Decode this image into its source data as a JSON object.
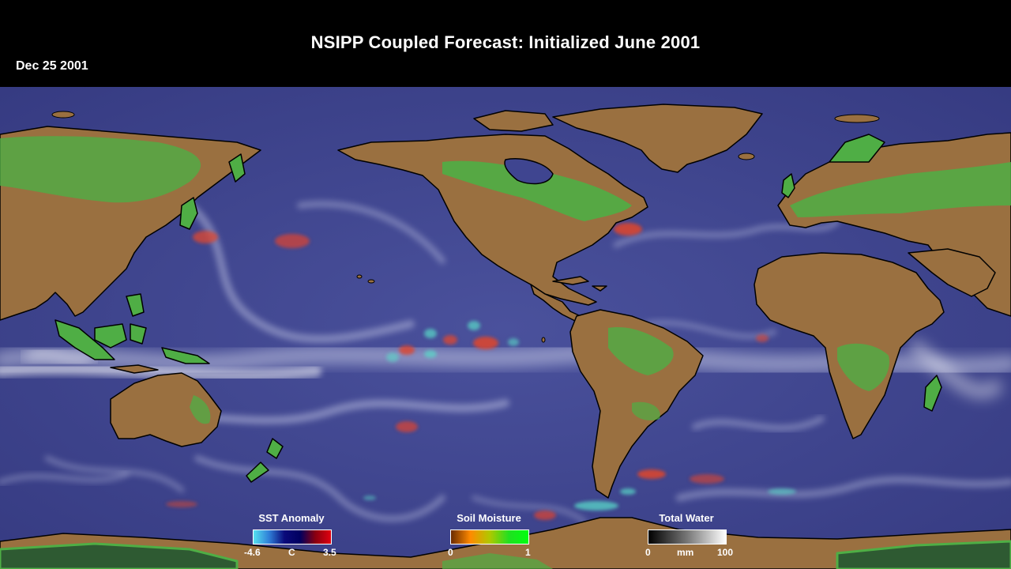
{
  "title": "NSIPP Coupled Forecast: Initialized June 2001",
  "date": "Dec 25 2001",
  "legends": {
    "sst": {
      "label": "SST Anomaly",
      "min": "-4.6",
      "unit": "C",
      "max": "3.5",
      "colors": [
        "#55e0f0",
        "#2f7fd8",
        "#0a0a7a",
        "#000060",
        "#8a0010",
        "#e00010"
      ]
    },
    "soil": {
      "label": "Soil Moisture",
      "min": "0",
      "max": "1",
      "colors": [
        "#6a2a00",
        "#ff8a00",
        "#b0c800",
        "#20e020",
        "#00ff10"
      ]
    },
    "water": {
      "label": "Total Water",
      "min": "0",
      "unit": "mm",
      "max": "100",
      "colors": [
        "#000000",
        "#777777",
        "#ffffff"
      ]
    }
  },
  "colors": {
    "ocean": "#3f4590",
    "land": "#9a7040",
    "vegetation": "#4fae45",
    "sea_ice": "#2e5a32",
    "cloud": "#d8dcf0",
    "warm_anomaly": "#e0452c",
    "cool_anomaly": "#5ad8c8"
  }
}
